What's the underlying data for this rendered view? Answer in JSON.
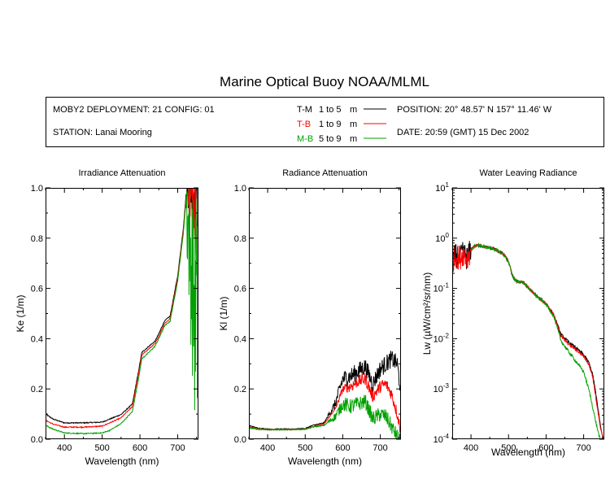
{
  "title": "Marine Optical Buoy NOAA/MLML",
  "header": {
    "deployment": "MOBY2 DEPLOYMENT: 21 CONFIG: 01",
    "station": "STATION: Lanai Mooring",
    "position": "POSITION: 20° 48.57' N   157° 11.46' W",
    "date": "DATE: 20:59 (GMT) 15 Dec 2002",
    "legend": [
      {
        "code": "T-M",
        "range": "1 to 5",
        "unit": "m",
        "color": "#000000"
      },
      {
        "code": "T-B",
        "range": "1 to 9",
        "unit": "m",
        "color": "#ff0000"
      },
      {
        "code": "M-B",
        "range": "5 to 9",
        "unit": "m",
        "color": "#00a000"
      }
    ]
  },
  "chart_data": [
    {
      "type": "line",
      "title": "Irradiance Attenuation",
      "xlabel": "Wavelength (nm)",
      "ylabel": "Ke  (1/m)",
      "xlim": [
        350,
        755
      ],
      "ylim": [
        0,
        1.0
      ],
      "yscale": "linear",
      "xticks": [
        400,
        500,
        600,
        700
      ],
      "yticks": [
        "0.0",
        "0.2",
        "0.4",
        "0.6",
        "0.8",
        "1.0"
      ],
      "series": [
        {
          "name": "T-M",
          "color": "#000000",
          "noise_from": 725,
          "noise_amp": 0.25,
          "x": [
            350,
            370,
            400,
            450,
            500,
            520,
            550,
            580,
            595,
            605,
            620,
            640,
            650,
            665,
            680,
            700,
            715,
            722,
            730,
            745,
            752
          ],
          "y": [
            0.1,
            0.08,
            0.065,
            0.065,
            0.068,
            0.08,
            0.098,
            0.14,
            0.26,
            0.345,
            0.365,
            0.39,
            0.42,
            0.47,
            0.49,
            0.65,
            0.84,
            0.97,
            1.0,
            1.0,
            1.0
          ]
        },
        {
          "name": "T-B",
          "color": "#ff0000",
          "noise_from": 728,
          "noise_amp": 0.35,
          "x": [
            350,
            370,
            400,
            450,
            500,
            520,
            550,
            580,
            595,
            605,
            620,
            640,
            650,
            665,
            680,
            700,
            715,
            722,
            730,
            745,
            752
          ],
          "y": [
            0.075,
            0.06,
            0.048,
            0.048,
            0.052,
            0.065,
            0.085,
            0.13,
            0.25,
            0.335,
            0.355,
            0.38,
            0.41,
            0.46,
            0.48,
            0.64,
            0.83,
            0.96,
            0.99,
            0.95,
            0.9
          ]
        },
        {
          "name": "M-B",
          "color": "#00a000",
          "noise_from": 722,
          "noise_amp": 0.7,
          "x": [
            350,
            370,
            400,
            450,
            500,
            520,
            550,
            580,
            595,
            605,
            620,
            640,
            650,
            665,
            680,
            700,
            715,
            722,
            730,
            745,
            752
          ],
          "y": [
            0.055,
            0.04,
            0.025,
            0.022,
            0.025,
            0.035,
            0.062,
            0.11,
            0.23,
            0.32,
            0.34,
            0.37,
            0.4,
            0.45,
            0.47,
            0.63,
            0.82,
            0.95,
            0.8,
            0.5,
            0.5
          ]
        }
      ]
    },
    {
      "type": "line",
      "title": "Radiance Attenuation",
      "xlabel": "Wavelength (nm)",
      "ylabel": "Kl  (1/m)",
      "xlim": [
        350,
        755
      ],
      "ylim": [
        0,
        1.0
      ],
      "yscale": "linear",
      "xticks": [
        400,
        500,
        600,
        700
      ],
      "yticks": [
        "0.0",
        "0.2",
        "0.4",
        "0.6",
        "0.8",
        "1.0"
      ],
      "series": [
        {
          "name": "T-M",
          "color": "#000000",
          "noise_from": 560,
          "noise_amp": 0.035,
          "x": [
            350,
            370,
            400,
            450,
            500,
            520,
            550,
            580,
            600,
            620,
            640,
            660,
            680,
            700,
            715,
            730,
            745,
            752
          ],
          "y": [
            0.055,
            0.045,
            0.04,
            0.04,
            0.042,
            0.055,
            0.065,
            0.14,
            0.24,
            0.25,
            0.27,
            0.29,
            0.22,
            0.28,
            0.3,
            0.32,
            0.3,
            0.22
          ]
        },
        {
          "name": "T-B",
          "color": "#ff0000",
          "noise_from": 580,
          "noise_amp": 0.025,
          "x": [
            350,
            370,
            400,
            450,
            500,
            520,
            550,
            580,
            600,
            620,
            640,
            660,
            680,
            700,
            715,
            730,
            745,
            752
          ],
          "y": [
            0.05,
            0.042,
            0.038,
            0.038,
            0.04,
            0.05,
            0.06,
            0.12,
            0.2,
            0.21,
            0.23,
            0.24,
            0.17,
            0.21,
            0.22,
            0.18,
            0.1,
            0.05
          ]
        },
        {
          "name": "M-B",
          "color": "#00a000",
          "noise_from": 560,
          "noise_amp": 0.03,
          "x": [
            350,
            370,
            400,
            450,
            500,
            520,
            550,
            580,
            600,
            620,
            640,
            660,
            680,
            700,
            715,
            730,
            745,
            752
          ],
          "y": [
            0.045,
            0.04,
            0.038,
            0.038,
            0.04,
            0.048,
            0.055,
            0.09,
            0.14,
            0.13,
            0.14,
            0.15,
            0.08,
            0.1,
            0.09,
            0.05,
            0.01,
            0.0
          ]
        }
      ]
    },
    {
      "type": "line",
      "title": "Water Leaving Radiance",
      "xlabel": "Wavelength (nm)",
      "ylabel": "Lw  (µW/cm²/sr/nm)",
      "xlim": [
        350,
        755
      ],
      "ylim": [
        0.0001,
        10
      ],
      "yscale": "log",
      "xticks": [
        400,
        500,
        600,
        700
      ],
      "yticks": [
        {
          "base": "10",
          "exp": "1"
        },
        {
          "base": "10",
          "exp": "0"
        },
        {
          "base": "10",
          "exp": "-1"
        },
        {
          "base": "10",
          "exp": "-2"
        },
        {
          "base": "10",
          "exp": "-3"
        },
        {
          "base": "10",
          "exp": "-4"
        }
      ],
      "series": [
        {
          "name": "T-M",
          "color": "#000000",
          "noise_from": 350,
          "noise_amp": 0.0,
          "x": [
            350,
            360,
            370,
            380,
            390,
            400,
            410,
            420,
            440,
            460,
            480,
            490,
            500,
            510,
            520,
            540,
            560,
            580,
            600,
            620,
            640,
            660,
            680,
            700,
            715,
            725,
            735,
            745,
            752
          ],
          "y": [
            0.35,
            0.45,
            0.4,
            0.5,
            0.4,
            0.6,
            0.7,
            0.72,
            0.66,
            0.62,
            0.52,
            0.44,
            0.34,
            0.18,
            0.14,
            0.13,
            0.09,
            0.065,
            0.05,
            0.03,
            0.012,
            0.0085,
            0.0065,
            0.0048,
            0.0032,
            0.0018,
            0.0006,
            0.00018,
            0.0001
          ]
        },
        {
          "name": "T-B",
          "color": "#ff0000",
          "noise_from": 350,
          "noise_amp": 0.0,
          "x": [
            350,
            360,
            370,
            380,
            390,
            400,
            410,
            420,
            440,
            460,
            480,
            490,
            500,
            510,
            520,
            540,
            560,
            580,
            600,
            620,
            640,
            660,
            680,
            700,
            715,
            725,
            735,
            745,
            752
          ],
          "y": [
            0.35,
            0.45,
            0.4,
            0.5,
            0.4,
            0.6,
            0.7,
            0.72,
            0.66,
            0.62,
            0.52,
            0.44,
            0.34,
            0.18,
            0.14,
            0.13,
            0.09,
            0.065,
            0.05,
            0.03,
            0.011,
            0.0078,
            0.006,
            0.0045,
            0.003,
            0.0016,
            0.0005,
            0.00016,
            0.0001
          ]
        },
        {
          "name": "M-B",
          "color": "#00a000",
          "noise_from": 350,
          "noise_amp": 0.0,
          "x": [
            400,
            410,
            420,
            440,
            460,
            480,
            490,
            500,
            510,
            520,
            540,
            560,
            580,
            600,
            620,
            640,
            660,
            680,
            700,
            715,
            725,
            735,
            745,
            752
          ],
          "y": [
            0.6,
            0.7,
            0.72,
            0.66,
            0.62,
            0.52,
            0.44,
            0.34,
            0.18,
            0.14,
            0.13,
            0.09,
            0.065,
            0.048,
            0.028,
            0.009,
            0.0055,
            0.0035,
            0.0022,
            0.0009,
            0.0004,
            0.00018,
            9e-05,
            6e-05
          ]
        }
      ]
    }
  ]
}
